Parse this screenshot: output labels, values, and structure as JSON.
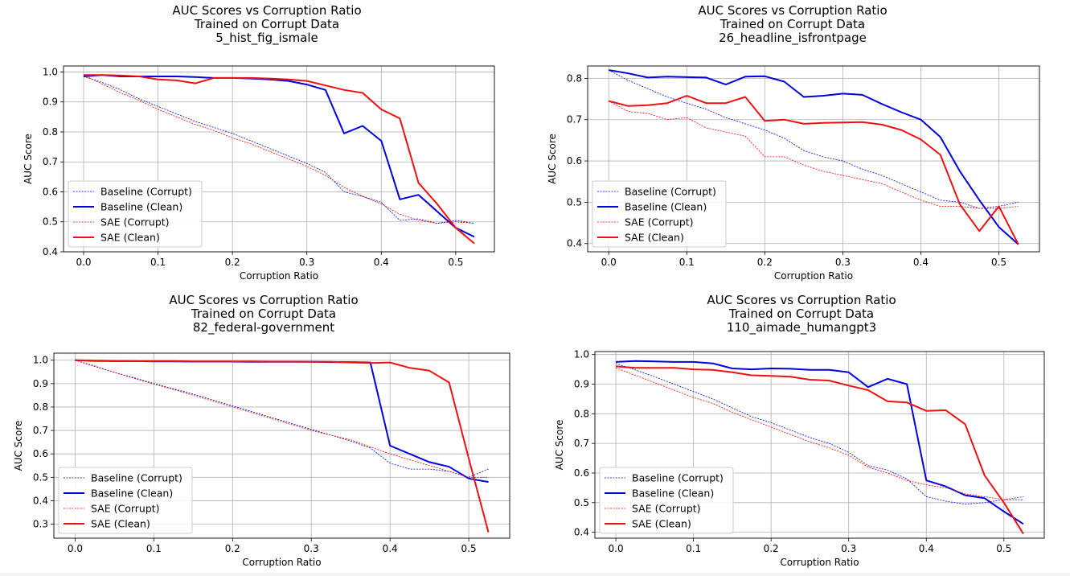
{
  "chart_data": [
    {
      "type": "line",
      "title": [
        "AUC Scores vs Corruption Ratio",
        "Trained on Corrupt Data",
        "5_hist_fig_ismale"
      ],
      "xlabel": "Corruption Ratio",
      "ylabel": "AUC Score",
      "xlim": [
        -0.027,
        0.552
      ],
      "ylim": [
        0.4,
        1.02
      ],
      "xticks": [
        0.0,
        0.1,
        0.2,
        0.3,
        0.4,
        0.5
      ],
      "xtick_labels": [
        "0.0",
        "0.1",
        "0.2",
        "0.3",
        "0.4",
        "0.5"
      ],
      "yticks": [
        0.4,
        0.5,
        0.6,
        0.7,
        0.8,
        0.9,
        1.0
      ],
      "ytick_labels": [
        "0.4",
        "0.5",
        "0.6",
        "0.7",
        "0.8",
        "0.9",
        "1.0"
      ],
      "grid": true,
      "legend_position": "lower-left",
      "x": [
        0.0,
        0.025,
        0.05,
        0.075,
        0.1,
        0.125,
        0.15,
        0.175,
        0.2,
        0.225,
        0.25,
        0.275,
        0.3,
        0.325,
        0.35,
        0.375,
        0.4,
        0.425,
        0.45,
        0.475,
        0.5,
        0.525
      ],
      "series": [
        {
          "name": "Baseline (Corrupt)",
          "color": "#0000ff",
          "style": "dotted",
          "values": [
            0.985,
            0.965,
            0.94,
            0.91,
            0.885,
            0.86,
            0.835,
            0.815,
            0.795,
            0.77,
            0.745,
            0.72,
            0.695,
            0.665,
            0.6,
            0.585,
            0.565,
            0.505,
            0.51,
            0.495,
            0.505,
            0.495
          ]
        },
        {
          "name": "Baseline (Clean)",
          "color": "#0000dd",
          "style": "solid",
          "values": [
            0.985,
            0.99,
            0.985,
            0.985,
            0.985,
            0.985,
            0.983,
            0.98,
            0.98,
            0.978,
            0.975,
            0.97,
            0.958,
            0.94,
            0.795,
            0.82,
            0.77,
            0.575,
            0.59,
            0.535,
            0.48,
            0.45
          ]
        },
        {
          "name": "SAE (Corrupt)",
          "color": "#ff0000",
          "style": "dotted",
          "values": [
            0.99,
            0.96,
            0.93,
            0.905,
            0.875,
            0.85,
            0.825,
            0.805,
            0.78,
            0.76,
            0.735,
            0.71,
            0.685,
            0.655,
            0.615,
            0.585,
            0.56,
            0.525,
            0.505,
            0.495,
            0.5,
            0.495
          ]
        },
        {
          "name": "SAE (Clean)",
          "color": "#ee1111",
          "style": "solid",
          "values": [
            0.99,
            0.99,
            0.988,
            0.985,
            0.975,
            0.972,
            0.962,
            0.98,
            0.98,
            0.98,
            0.978,
            0.975,
            0.97,
            0.955,
            0.94,
            0.93,
            0.875,
            0.845,
            0.63,
            0.56,
            0.48,
            0.428
          ]
        }
      ]
    },
    {
      "type": "line",
      "title": [
        "AUC Scores vs Corruption Ratio",
        "Trained on Corrupt Data",
        "26_headline_isfrontpage"
      ],
      "xlabel": "Corruption Ratio",
      "ylabel": "AUC Score",
      "xlim": [
        -0.027,
        0.552
      ],
      "ylim": [
        0.38,
        0.83
      ],
      "xticks": [
        0.0,
        0.1,
        0.2,
        0.3,
        0.4,
        0.5
      ],
      "xtick_labels": [
        "0.0",
        "0.1",
        "0.2",
        "0.3",
        "0.4",
        "0.5"
      ],
      "yticks": [
        0.4,
        0.5,
        0.6,
        0.7,
        0.8
      ],
      "ytick_labels": [
        "0.4",
        "0.5",
        "0.6",
        "0.7",
        "0.8"
      ],
      "grid": true,
      "legend_position": "lower-left",
      "x": [
        0.0,
        0.025,
        0.05,
        0.075,
        0.1,
        0.125,
        0.15,
        0.175,
        0.2,
        0.225,
        0.25,
        0.275,
        0.3,
        0.325,
        0.35,
        0.375,
        0.4,
        0.425,
        0.45,
        0.475,
        0.5,
        0.525
      ],
      "series": [
        {
          "name": "Baseline (Corrupt)",
          "color": "#0000ff",
          "style": "dotted",
          "values": [
            0.82,
            0.795,
            0.775,
            0.755,
            0.74,
            0.725,
            0.705,
            0.69,
            0.675,
            0.655,
            0.625,
            0.61,
            0.6,
            0.58,
            0.565,
            0.545,
            0.525,
            0.505,
            0.5,
            0.485,
            0.49,
            0.5
          ]
        },
        {
          "name": "Baseline (Clean)",
          "color": "#0000dd",
          "style": "solid",
          "values": [
            0.82,
            0.812,
            0.802,
            0.804,
            0.803,
            0.802,
            0.785,
            0.804,
            0.805,
            0.792,
            0.755,
            0.758,
            0.763,
            0.76,
            0.738,
            0.718,
            0.7,
            0.658,
            0.575,
            0.505,
            0.44,
            0.398
          ]
        },
        {
          "name": "SAE (Corrupt)",
          "color": "#ff0000",
          "style": "dotted",
          "values": [
            0.745,
            0.72,
            0.715,
            0.7,
            0.705,
            0.68,
            0.67,
            0.66,
            0.61,
            0.61,
            0.59,
            0.575,
            0.565,
            0.555,
            0.545,
            0.525,
            0.505,
            0.49,
            0.49,
            0.485,
            0.485,
            0.49
          ]
        },
        {
          "name": "SAE (Clean)",
          "color": "#ee1111",
          "style": "solid",
          "values": [
            0.745,
            0.733,
            0.735,
            0.74,
            0.758,
            0.74,
            0.74,
            0.755,
            0.697,
            0.7,
            0.69,
            0.692,
            0.693,
            0.694,
            0.688,
            0.675,
            0.652,
            0.615,
            0.495,
            0.43,
            0.49,
            0.398
          ]
        }
      ]
    },
    {
      "type": "line",
      "title": [
        "AUC Scores vs Corruption Ratio",
        "Trained on Corrupt Data",
        "82_federal-government"
      ],
      "xlabel": "Corruption Ratio",
      "ylabel": "AUC Score",
      "xlim": [
        -0.027,
        0.552
      ],
      "ylim": [
        0.24,
        1.03
      ],
      "xticks": [
        0.0,
        0.1,
        0.2,
        0.3,
        0.4,
        0.5
      ],
      "xtick_labels": [
        "0.0",
        "0.1",
        "0.2",
        "0.3",
        "0.4",
        "0.5"
      ],
      "yticks": [
        0.3,
        0.4,
        0.5,
        0.6,
        0.7,
        0.8,
        0.9,
        1.0
      ],
      "ytick_labels": [
        "0.3",
        "0.4",
        "0.5",
        "0.6",
        "0.7",
        "0.8",
        "0.9",
        "1.0"
      ],
      "grid": true,
      "legend_position": "lower-left",
      "x": [
        0.0,
        0.025,
        0.05,
        0.075,
        0.1,
        0.125,
        0.15,
        0.175,
        0.2,
        0.225,
        0.25,
        0.275,
        0.3,
        0.325,
        0.35,
        0.375,
        0.4,
        0.425,
        0.45,
        0.475,
        0.5,
        0.525
      ],
      "series": [
        {
          "name": "Baseline (Corrupt)",
          "color": "#0000ff",
          "style": "dotted",
          "values": [
            1.0,
            0.975,
            0.948,
            0.925,
            0.9,
            0.878,
            0.855,
            0.83,
            0.805,
            0.78,
            0.755,
            0.73,
            0.705,
            0.68,
            0.655,
            0.625,
            0.56,
            0.535,
            0.535,
            0.525,
            0.5,
            0.535
          ]
        },
        {
          "name": "Baseline (Clean)",
          "color": "#0000dd",
          "style": "solid",
          "values": [
            1.0,
            0.997,
            0.996,
            0.996,
            0.995,
            0.995,
            0.994,
            0.994,
            0.994,
            0.993,
            0.993,
            0.993,
            0.993,
            0.992,
            0.992,
            0.99,
            0.635,
            0.6,
            0.565,
            0.545,
            0.495,
            0.48
          ]
        },
        {
          "name": "SAE (Corrupt)",
          "color": "#ff0000",
          "style": "dotted",
          "values": [
            1.0,
            0.973,
            0.948,
            0.922,
            0.898,
            0.875,
            0.85,
            0.825,
            0.8,
            0.775,
            0.75,
            0.725,
            0.7,
            0.68,
            0.66,
            0.63,
            0.6,
            0.575,
            0.55,
            0.525,
            0.5,
            0.5
          ]
        },
        {
          "name": "SAE (Clean)",
          "color": "#ee1111",
          "style": "solid",
          "values": [
            1.0,
            0.998,
            0.997,
            0.996,
            0.996,
            0.996,
            0.995,
            0.995,
            0.995,
            0.995,
            0.994,
            0.994,
            0.993,
            0.993,
            0.99,
            0.988,
            0.99,
            0.967,
            0.955,
            0.905,
            0.58,
            0.265
          ]
        }
      ]
    },
    {
      "type": "line",
      "title": [
        "AUC Scores vs Corruption Ratio",
        "Trained on Corrupt Data",
        "110_aimade_humangpt3"
      ],
      "xlabel": "Corruption Ratio",
      "ylabel": "AUC Score",
      "xlim": [
        -0.027,
        0.552
      ],
      "ylim": [
        0.38,
        1.01
      ],
      "xticks": [
        0.0,
        0.1,
        0.2,
        0.3,
        0.4,
        0.5
      ],
      "xtick_labels": [
        "0.0",
        "0.1",
        "0.2",
        "0.3",
        "0.4",
        "0.5"
      ],
      "yticks": [
        0.4,
        0.5,
        0.6,
        0.7,
        0.8,
        0.9,
        1.0
      ],
      "ytick_labels": [
        "0.4",
        "0.5",
        "0.6",
        "0.7",
        "0.8",
        "0.9",
        "1.0"
      ],
      "grid": true,
      "legend_position": "lower-left",
      "x": [
        0.0,
        0.025,
        0.05,
        0.075,
        0.1,
        0.125,
        0.15,
        0.175,
        0.2,
        0.225,
        0.25,
        0.275,
        0.3,
        0.325,
        0.35,
        0.375,
        0.4,
        0.425,
        0.45,
        0.475,
        0.5,
        0.525
      ],
      "series": [
        {
          "name": "Baseline (Corrupt)",
          "color": "#0000ff",
          "style": "dotted",
          "values": [
            0.97,
            0.948,
            0.925,
            0.9,
            0.875,
            0.85,
            0.82,
            0.79,
            0.77,
            0.745,
            0.72,
            0.7,
            0.67,
            0.625,
            0.61,
            0.58,
            0.52,
            0.505,
            0.495,
            0.5,
            0.51,
            0.51
          ]
        },
        {
          "name": "Baseline (Clean)",
          "color": "#0000dd",
          "style": "solid",
          "values": [
            0.975,
            0.978,
            0.977,
            0.975,
            0.975,
            0.97,
            0.953,
            0.95,
            0.953,
            0.952,
            0.948,
            0.948,
            0.94,
            0.89,
            0.918,
            0.9,
            0.575,
            0.555,
            0.525,
            0.515,
            0.47,
            0.428
          ]
        },
        {
          "name": "SAE (Corrupt)",
          "color": "#ff0000",
          "style": "dotted",
          "values": [
            0.955,
            0.93,
            0.905,
            0.88,
            0.855,
            0.835,
            0.805,
            0.78,
            0.755,
            0.73,
            0.705,
            0.685,
            0.66,
            0.62,
            0.6,
            0.575,
            0.56,
            0.55,
            0.53,
            0.52,
            0.51,
            0.52
          ]
        },
        {
          "name": "SAE (Clean)",
          "color": "#ee1111",
          "style": "solid",
          "values": [
            0.96,
            0.955,
            0.955,
            0.955,
            0.95,
            0.948,
            0.94,
            0.93,
            0.928,
            0.925,
            0.915,
            0.912,
            0.895,
            0.88,
            0.842,
            0.838,
            0.81,
            0.812,
            0.765,
            0.592,
            0.5,
            0.395
          ]
        }
      ]
    }
  ]
}
